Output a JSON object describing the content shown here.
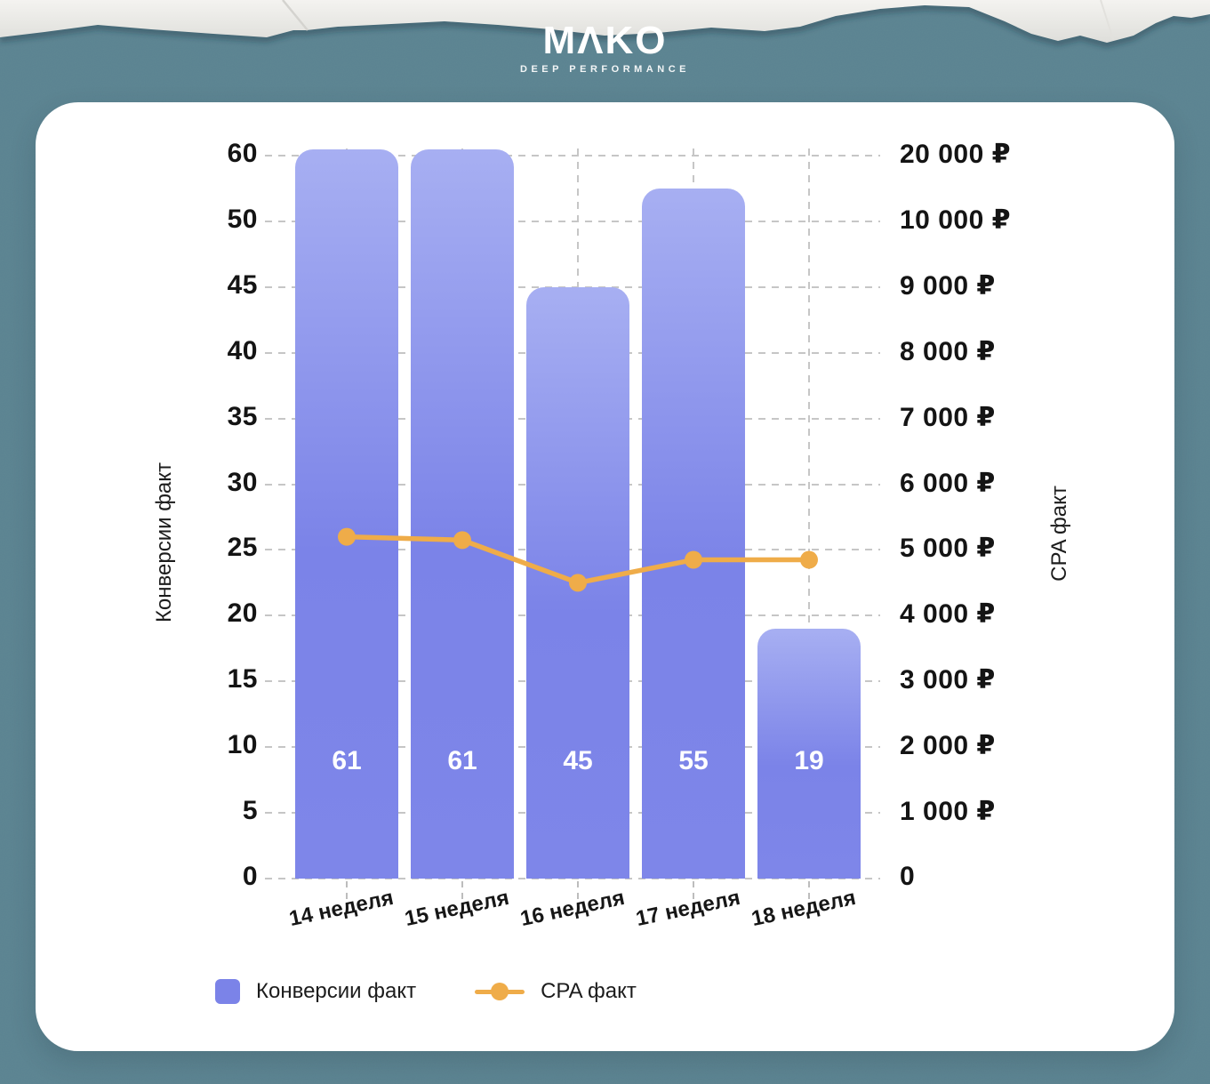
{
  "header": {
    "brand": "MAKO",
    "tagline": "DEEP PERFORMANCE"
  },
  "colors": {
    "background": "#5b8290",
    "card": "#ffffff",
    "grid": "#c6c6c6",
    "bar": "#7b83e8",
    "bar_light": "#a7aff2",
    "line": "#efac49",
    "text": "#141414"
  },
  "chart_data": {
    "type": "bar+line combo",
    "categories": [
      "14 неделя",
      "15 неделя",
      "16 неделя",
      "17 неделя",
      "18 неделя"
    ],
    "series": [
      {
        "name": "Конверсии факт",
        "type": "bar",
        "axis": "left",
        "color": "#7b83e8",
        "values": [
          61,
          61,
          45,
          55,
          19
        ]
      },
      {
        "name": "CPA факт",
        "type": "line",
        "axis": "right",
        "color": "#efac49",
        "values": [
          5200,
          5150,
          4500,
          4850,
          4850
        ],
        "note": "₽ values estimated from line position between gridlines"
      }
    ],
    "bar_value_labels": [
      "61",
      "61",
      "45",
      "55",
      "19"
    ],
    "left_axis": {
      "title": "Конверсии факт",
      "tick_values": [
        60,
        50,
        45,
        40,
        35,
        30,
        25,
        20,
        15,
        10,
        5,
        0
      ],
      "tick_labels": [
        "60",
        "50",
        "45",
        "40",
        "35",
        "30",
        "25",
        "20",
        "15",
        "10",
        "5",
        "0"
      ]
    },
    "right_axis": {
      "title": "CPA факт",
      "tick_values": [
        20000,
        10000,
        9000,
        8000,
        7000,
        6000,
        5000,
        4000,
        3000,
        2000,
        1000,
        0
      ],
      "tick_labels": [
        "20 000 ₽",
        "10 000 ₽",
        "9 000 ₽",
        "8 000 ₽",
        "7 000 ₽",
        "6 000 ₽",
        "5 000 ₽",
        "4 000 ₽",
        "3 000 ₽",
        "2 000 ₽",
        "1 000 ₽",
        "0"
      ]
    },
    "grid": "dashed horizontal at each tick; dashed vertical at category centers; axes non-linear (equal spacing per tick)",
    "legend_position": "bottom-left"
  },
  "legend": {
    "items": [
      {
        "label": "Конверсии факт",
        "swatch": "square",
        "color": "#7b83e8"
      },
      {
        "label": "CPA факт",
        "swatch": "line-dot",
        "color": "#efac49"
      }
    ]
  }
}
